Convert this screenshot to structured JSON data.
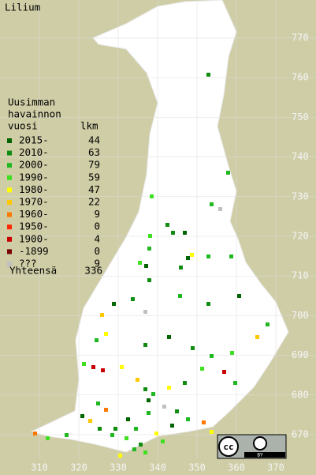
{
  "title": "Lilium",
  "legend": {
    "heading": [
      "Uusimman",
      "havainnon",
      "vuosi"
    ],
    "count_heading": "lkm",
    "items": [
      {
        "label": "2015-",
        "count": 44,
        "color": "#006400"
      },
      {
        "label": "2010-",
        "count": 63,
        "color": "#108c10"
      },
      {
        "label": "2000-",
        "count": 79,
        "color": "#20b820"
      },
      {
        "label": "1990-",
        "count": 59,
        "color": "#40e020"
      },
      {
        "label": "1980-",
        "count": 47,
        "color": "#ffff00"
      },
      {
        "label": "1970-",
        "count": 22,
        "color": "#ffc800"
      },
      {
        "label": "1960-",
        "count": 9,
        "color": "#ff7800"
      },
      {
        "label": "1950-",
        "count": 0,
        "color": "#ff2800"
      },
      {
        "label": "1900-",
        "count": 4,
        "color": "#c80000"
      },
      {
        "label": "-1899",
        "count": 0,
        "color": "#780000"
      },
      {
        "label": "???",
        "count": 9,
        "color": "#c0c0c0"
      }
    ],
    "total_label": "Yhteensä",
    "total": 336
  },
  "y_labels": [
    770,
    760,
    750,
    740,
    730,
    720,
    710,
    700,
    690,
    680,
    670
  ],
  "x_labels": [
    310,
    320,
    330,
    340,
    350,
    360,
    370
  ],
  "license_badge": {
    "cc": "cc",
    "by": "BY"
  }
}
